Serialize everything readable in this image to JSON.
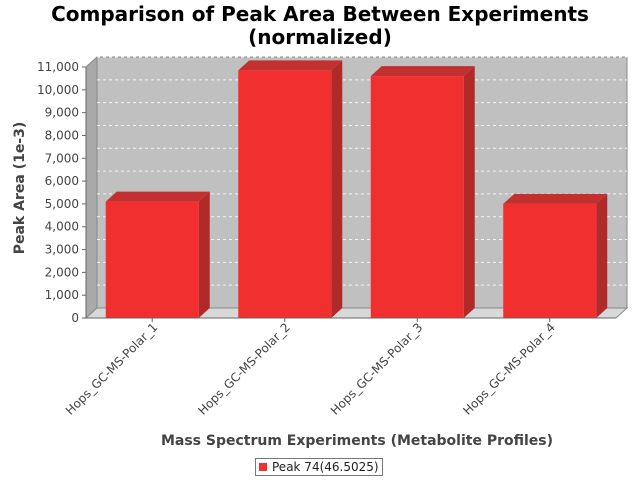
{
  "chart_data": {
    "type": "bar",
    "title_lines": [
      "Comparison of Peak Area Between Experiments",
      "(normalized)"
    ],
    "xlabel": "Mass Spectrum Experiments (Metabolite Profiles)",
    "ylabel": "Peak Area (1e-3)",
    "categories": [
      "Hops_GC-MS-Polar_1",
      "Hops_GC-MS-Polar_2",
      "Hops_GC-MS-Polar_3",
      "Hops_GC-MS-Polar_4"
    ],
    "series": [
      {
        "name": "Peak 74(46.5025)",
        "values": [
          5100,
          10850,
          10600,
          5000
        ],
        "color": "#f22f2f"
      }
    ],
    "yticks": [
      "0",
      "1,000",
      "2,000",
      "3,000",
      "4,000",
      "5,000",
      "6,000",
      "7,000",
      "8,000",
      "9,000",
      "10,000",
      "11,000"
    ],
    "ylim": [
      0,
      11000
    ],
    "grid": true,
    "legend_position": "bottom"
  }
}
